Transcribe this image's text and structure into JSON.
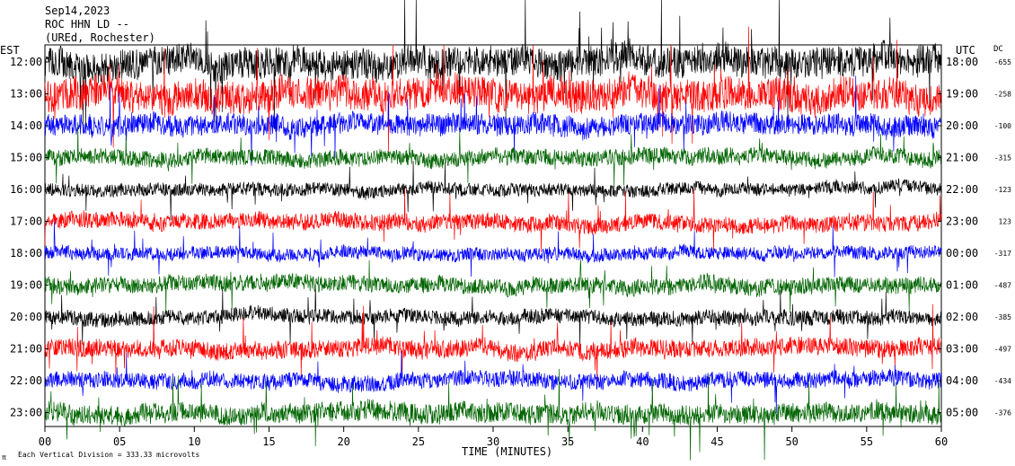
{
  "chart_data": {
    "type": "line",
    "header": {
      "date": "Sep14,2023",
      "station": "ROC HHN LD --",
      "location": "(UREd, Rochester)"
    },
    "left_axis_label": "EST",
    "right_axis_label": "UTC",
    "dc_label": "DC",
    "xlabel": "TIME (MINUTES)",
    "xlim": [
      0,
      60
    ],
    "x_ticks": [
      "00",
      "05",
      "10",
      "15",
      "20",
      "25",
      "30",
      "35",
      "40",
      "45",
      "50",
      "55",
      "60"
    ],
    "footer_note": "Each Vertical Division = 333.33 microvolts",
    "footer_mark": "π",
    "traces_per_hour_row": 1,
    "rows": [
      {
        "est": "12:00",
        "utc": "18:00",
        "dc": "-655",
        "color": "#000000",
        "amplitude": 1.9
      },
      {
        "est": "13:00",
        "utc": "19:00",
        "dc": "-258",
        "color": "#ff0000",
        "amplitude": 2.0
      },
      {
        "est": "14:00",
        "utc": "20:00",
        "dc": "-100",
        "color": "#0000ff",
        "amplitude": 1.3
      },
      {
        "est": "15:00",
        "utc": "21:00",
        "dc": "-315",
        "color": "#006400",
        "amplitude": 1.0
      },
      {
        "est": "16:00",
        "utc": "22:00",
        "dc": "-123",
        "color": "#000000",
        "amplitude": 0.8
      },
      {
        "est": "17:00",
        "utc": "23:00",
        "dc": "123",
        "color": "#ff0000",
        "amplitude": 1.0
      },
      {
        "est": "18:00",
        "utc": "00:00",
        "dc": "-317",
        "color": "#0000ff",
        "amplitude": 0.8
      },
      {
        "est": "19:00",
        "utc": "01:00",
        "dc": "-487",
        "color": "#006400",
        "amplitude": 1.0
      },
      {
        "est": "20:00",
        "utc": "02:00",
        "dc": "-385",
        "color": "#000000",
        "amplitude": 0.9
      },
      {
        "est": "21:00",
        "utc": "03:00",
        "dc": "-497",
        "color": "#ff0000",
        "amplitude": 1.1
      },
      {
        "est": "22:00",
        "utc": "04:00",
        "dc": "-434",
        "color": "#0000ff",
        "amplitude": 1.0
      },
      {
        "est": "23:00",
        "utc": "05:00",
        "dc": "-376",
        "color": "#006400",
        "amplitude": 1.2
      }
    ]
  }
}
